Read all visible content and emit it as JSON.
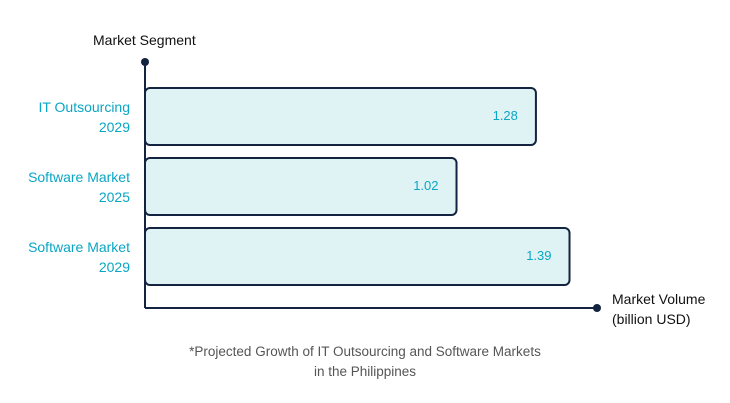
{
  "chart_data": {
    "type": "barh",
    "y_label": "Market Segment",
    "x_label": "Market Volume\n(billion USD)",
    "annotation": "*Projected Growth of IT Outsourcing and Software Markets\nin the Philippines",
    "categories": [
      "IT Outsourcing\n2029",
      "Software Market\n2025",
      "Software Market\n2029"
    ],
    "values": [
      1.28,
      1.02,
      1.39
    ],
    "xlim": [
      0,
      1.48
    ],
    "color": "#dff3f5",
    "edge_color": "#14233f"
  }
}
